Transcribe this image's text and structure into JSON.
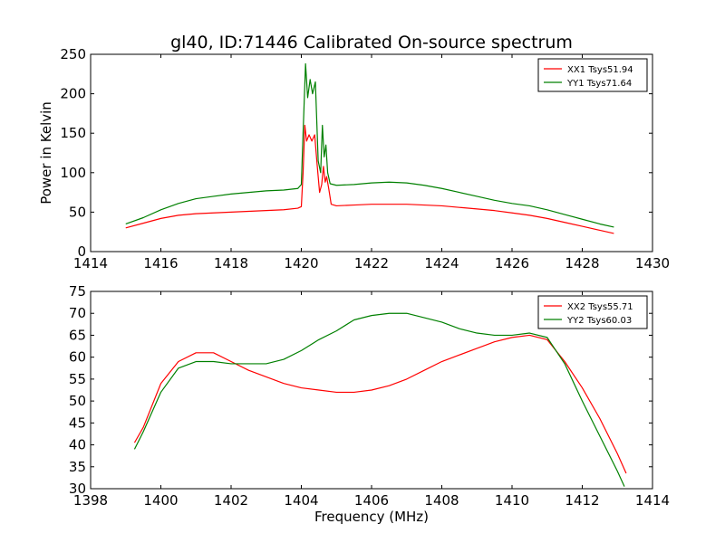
{
  "chart_data": [
    {
      "type": "line",
      "title": "gl40, ID:71446 Calibrated On-source spectrum",
      "xlabel": "",
      "ylabel": "Power in Kelvin",
      "xlim": [
        1414,
        1430
      ],
      "ylim": [
        0,
        250
      ],
      "xticks": [
        "1414",
        "1416",
        "1418",
        "1420",
        "1422",
        "1424",
        "1426",
        "1428",
        "1430"
      ],
      "yticks": [
        "0",
        "50",
        "100",
        "150",
        "200",
        "250"
      ],
      "legend_position": "top-right",
      "series": [
        {
          "name": "XX1 Tsys51.94",
          "color": "#ff0000",
          "x": [
            1415.0,
            1415.5,
            1416.0,
            1416.5,
            1417.0,
            1417.5,
            1418.0,
            1418.5,
            1419.0,
            1419.5,
            1419.9,
            1420.0,
            1420.05,
            1420.1,
            1420.15,
            1420.22,
            1420.3,
            1420.38,
            1420.45,
            1420.52,
            1420.58,
            1420.63,
            1420.68,
            1420.72,
            1420.78,
            1420.85,
            1421.0,
            1421.5,
            1422.0,
            1422.5,
            1423.0,
            1423.5,
            1424.0,
            1424.5,
            1425.0,
            1425.5,
            1426.0,
            1426.5,
            1427.0,
            1427.5,
            1428.0,
            1428.5,
            1428.9
          ],
          "y": [
            30,
            36,
            42,
            46,
            48,
            49,
            50,
            51,
            52,
            53,
            55,
            57,
            100,
            160,
            140,
            148,
            140,
            148,
            110,
            75,
            85,
            108,
            88,
            95,
            80,
            60,
            58,
            59,
            60,
            60,
            60,
            59,
            58,
            56,
            54,
            52,
            49,
            46,
            42,
            37,
            32,
            27,
            23
          ]
        },
        {
          "name": "YY1 Tsys71.64",
          "color": "#008000",
          "x": [
            1415.0,
            1415.5,
            1416.0,
            1416.5,
            1417.0,
            1417.5,
            1418.0,
            1418.5,
            1419.0,
            1419.5,
            1419.9,
            1420.0,
            1420.05,
            1420.12,
            1420.18,
            1420.25,
            1420.32,
            1420.4,
            1420.48,
            1420.55,
            1420.6,
            1420.65,
            1420.7,
            1420.75,
            1420.82,
            1421.0,
            1421.5,
            1422.0,
            1422.5,
            1423.0,
            1423.5,
            1424.0,
            1424.5,
            1425.0,
            1425.5,
            1426.0,
            1426.5,
            1427.0,
            1427.5,
            1428.0,
            1428.5,
            1428.9
          ],
          "y": [
            35,
            43,
            53,
            61,
            67,
            70,
            73,
            75,
            77,
            78,
            80,
            85,
            150,
            238,
            195,
            218,
            200,
            215,
            115,
            100,
            160,
            120,
            135,
            100,
            86,
            84,
            85,
            87,
            88,
            87,
            84,
            80,
            75,
            70,
            65,
            61,
            58,
            53,
            47,
            41,
            35,
            31
          ]
        }
      ]
    },
    {
      "type": "line",
      "title": "",
      "xlabel": "Frequency (MHz)",
      "ylabel": "",
      "xlim": [
        1398,
        1414
      ],
      "ylim": [
        30,
        75
      ],
      "xticks": [
        "1398",
        "1400",
        "1402",
        "1404",
        "1406",
        "1408",
        "1410",
        "1412",
        "1414"
      ],
      "yticks": [
        "30",
        "35",
        "40",
        "45",
        "50",
        "55",
        "60",
        "65",
        "70",
        "75"
      ],
      "legend_position": "top-right",
      "series": [
        {
          "name": "XX2 Tsys55.71",
          "color": "#ff0000",
          "x": [
            1399.25,
            1399.5,
            1400.0,
            1400.5,
            1401.0,
            1401.5,
            1402.0,
            1402.5,
            1403.0,
            1403.5,
            1404.0,
            1404.5,
            1405.0,
            1405.5,
            1406.0,
            1406.5,
            1407.0,
            1407.5,
            1408.0,
            1408.5,
            1409.0,
            1409.5,
            1410.0,
            1410.5,
            1411.0,
            1411.5,
            1412.0,
            1412.5,
            1413.0,
            1413.25
          ],
          "y": [
            40.5,
            44,
            54,
            59,
            61,
            61,
            59,
            57,
            55.5,
            54,
            53,
            52.5,
            52,
            52,
            52.5,
            53.5,
            55,
            57,
            59,
            60.5,
            62,
            63.5,
            64.5,
            65,
            64,
            59,
            53,
            46,
            38,
            33.5
          ]
        },
        {
          "name": "YY2 Tsys60.03",
          "color": "#008000",
          "x": [
            1399.25,
            1399.5,
            1400.0,
            1400.5,
            1401.0,
            1401.5,
            1402.0,
            1402.5,
            1403.0,
            1403.5,
            1404.0,
            1404.5,
            1405.0,
            1405.5,
            1406.0,
            1406.5,
            1407.0,
            1407.5,
            1408.0,
            1408.5,
            1409.0,
            1409.5,
            1410.0,
            1410.5,
            1411.0,
            1411.5,
            1412.0,
            1412.5,
            1413.0,
            1413.2
          ],
          "y": [
            39,
            43,
            52,
            57.5,
            59,
            59,
            58.5,
            58.5,
            58.5,
            59.5,
            61.5,
            64,
            66,
            68.5,
            69.5,
            70,
            70,
            69,
            68,
            66.5,
            65.5,
            65,
            65,
            65.5,
            64.5,
            58.5,
            50,
            42,
            34,
            30.5
          ]
        }
      ]
    }
  ]
}
